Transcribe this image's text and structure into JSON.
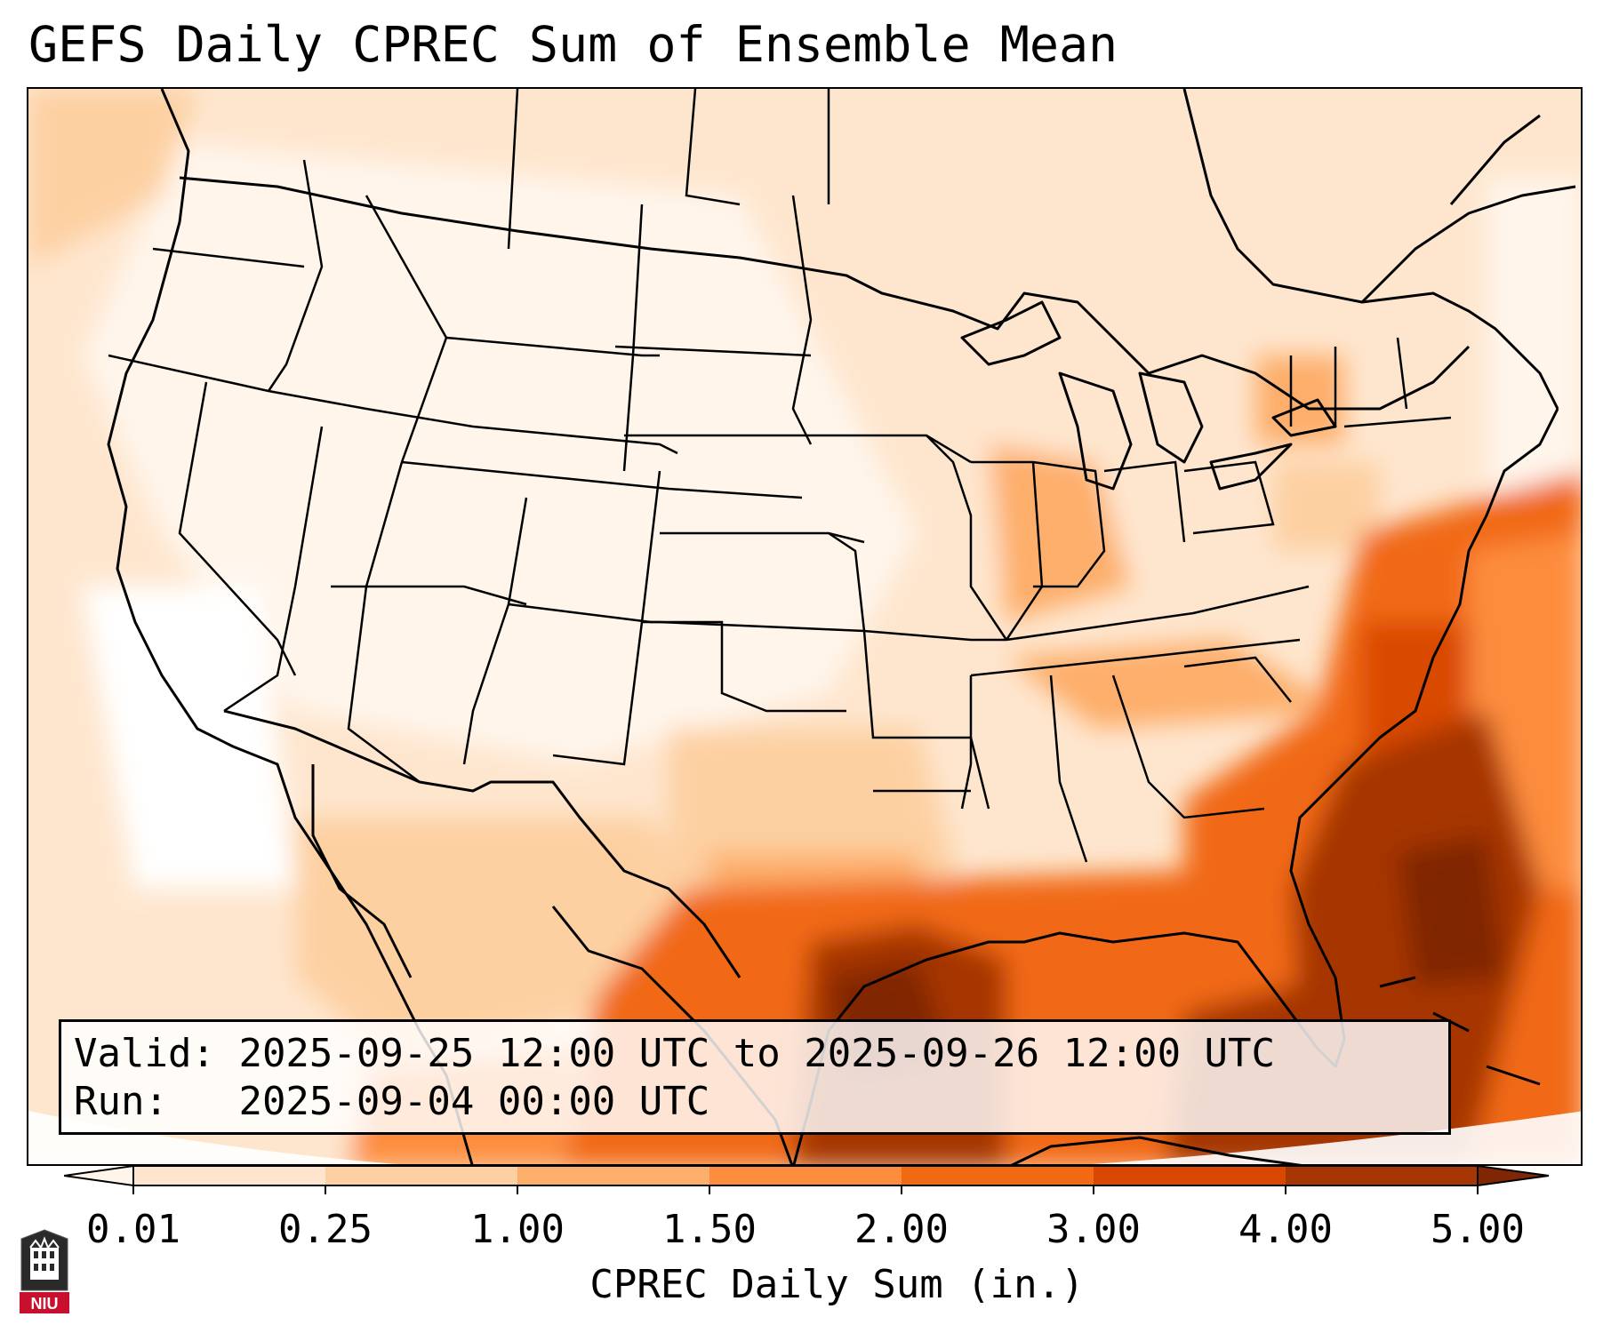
{
  "title": "GEFS Daily CPREC Sum of Ensemble Mean",
  "info": {
    "valid_label": "Valid:",
    "valid_value": "2025-09-25 12:00 UTC to 2025-09-26 12:00 UTC",
    "run_label": "Run:",
    "run_value": "2025-09-04 00:00 UTC"
  },
  "colorbar": {
    "label": "CPREC Daily Sum (in.)",
    "ticks": [
      "0.01",
      "0.25",
      "1.00",
      "1.50",
      "2.00",
      "3.00",
      "4.00",
      "5.00"
    ],
    "colors": [
      "#fff5eb",
      "#fee6ce",
      "#fdd0a2",
      "#fdae6b",
      "#fd8d3c",
      "#f16913",
      "#d94801",
      "#a63603",
      "#7f2704"
    ]
  },
  "logo": {
    "text": "NIU",
    "name": "niu-logo"
  }
}
